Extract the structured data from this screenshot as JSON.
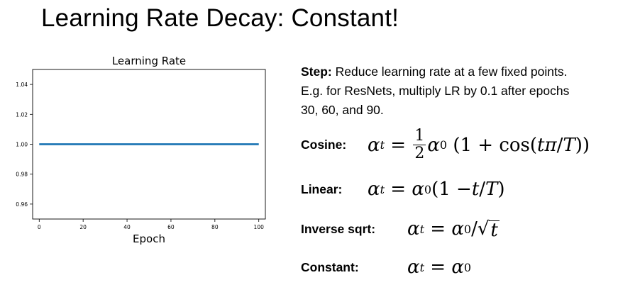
{
  "slide": {
    "title_main": "Learning Rate Decay",
    "title_rest": ": Constant!"
  },
  "step": {
    "label": "Step:",
    "line1": " Reduce learning rate at a few fixed points.",
    "line2": "E.g. for ResNets, multiply LR by 0.1 after epochs",
    "line3": "30, 60, and 90."
  },
  "formulas": {
    "cosine_label": "Cosine:",
    "linear_label": "Linear:",
    "invsqrt_label": "Inverse sqrt:",
    "constant_label": "Constant:"
  },
  "chart_data": {
    "type": "line",
    "title": "Learning Rate",
    "xlabel": "Epoch",
    "ylabel": "",
    "xlim": [
      -3,
      103
    ],
    "ylim": [
      0.95,
      1.05
    ],
    "x_ticks": [
      0,
      20,
      40,
      60,
      80,
      100
    ],
    "x_tick_labels": [
      "0",
      "20",
      "40",
      "60",
      "80",
      "100"
    ],
    "y_ticks": [
      0.96,
      0.98,
      1.0,
      1.02,
      1.04
    ],
    "y_tick_labels": [
      "0.96",
      "0.98",
      "1.00",
      "1.02",
      "1.04"
    ],
    "grid": false,
    "series": [
      {
        "x": [
          0,
          100
        ],
        "y": [
          1.0,
          1.0
        ],
        "color": "#1f77b4"
      }
    ]
  }
}
